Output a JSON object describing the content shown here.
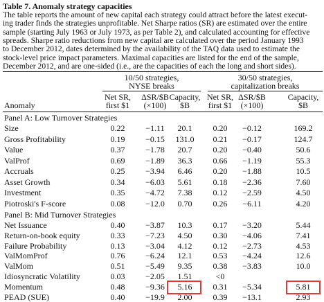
{
  "header": {
    "title": "Table 7. Anomaly strategy capacities",
    "caption_lines": [
      "The table reports the amount of new capital each strategy could attract before the latest execut-",
      "ing trader finds the strategies unprofitable. Net Sharpe ratios (SR) are estimated over the entire",
      "sample (starting July 1963 or July 1973, as per Table 2), and calculated accounting for effective",
      "spreads. Sharpe ratio reductions from new capital are calculated over the period January 1993",
      "to December 2012, dates determined by the availability of the TAQ data used to estimate the",
      "stock-level price impact parameters. Maximal capacities are listed for the end of the sample,",
      "December 2012, and are one-sided (i.e., are the capacities of each the long and short sides)."
    ]
  },
  "table": {
    "groups": [
      [
        "10/50 strategies,",
        "NYSE breaks"
      ],
      [
        "30/50 strategies,",
        "capitalization breaks"
      ]
    ],
    "columns": [
      [
        "Anomaly"
      ],
      [
        "Net SR,",
        "first $1"
      ],
      [
        "ΔSR/$B",
        "(×100)"
      ],
      [
        "Capacity,",
        "$B"
      ],
      [
        "Net SR,",
        "first $1"
      ],
      [
        "ΔSR/$B",
        "(×100)"
      ],
      [
        "Capacity,",
        "$B"
      ]
    ],
    "panels": [
      {
        "title": "Panel A: Low Turnover Strategies",
        "rows": [
          [
            "Size",
            "0.22",
            "−1.11",
            "20.1",
            "0.20",
            "−0.12",
            "169.2"
          ],
          [
            "Gross Profitability",
            "0.19",
            "−0.15",
            "131.0",
            "0.21",
            "−0.17",
            "124.7"
          ],
          [
            "Value",
            "0.37",
            "−1.78",
            "20.7",
            "0.20",
            "−0.40",
            "50.6"
          ],
          [
            "ValProf",
            "0.69",
            "−1.89",
            "36.3",
            "0.66",
            "−1.19",
            "55.3"
          ],
          [
            "Accruals",
            "0.25",
            "−3.94",
            "6.46",
            "0.20",
            "−1.88",
            "10.5"
          ],
          [
            "Asset Growth",
            "0.34",
            "−6.03",
            "5.61",
            "0.18",
            "−2.36",
            "7.60"
          ],
          [
            "Investment",
            "0.35",
            "−4.72",
            "7.38",
            "0.12",
            "−2.59",
            "4.50"
          ],
          [
            "Piotroski's F-score",
            "0.08",
            "−12.0",
            "0.70",
            "0.26",
            "−6.11",
            "4.20"
          ]
        ]
      },
      {
        "title": "Panel B: Mid Turnover Strategies",
        "rows": [
          [
            "Net Issuance",
            "0.40",
            "−3.87",
            "10.3",
            "0.17",
            "−3.20",
            "5.44"
          ],
          [
            "Return-on-book equity",
            "0.33",
            "−7.23",
            "4.50",
            "0.30",
            "−4.06",
            "7.41"
          ],
          [
            "Failure Probability",
            "0.13",
            "−3.04",
            "4.12",
            "0.12",
            "−2.73",
            "4.53"
          ],
          [
            "ValMomProf",
            "0.76",
            "−6.24",
            "12.1",
            "0.53",
            "−4.24",
            "12.6"
          ],
          [
            "ValMom",
            "0.51",
            "−5.49",
            "9.35",
            "0.38",
            "−3.83",
            "10.0"
          ],
          [
            "Idiosyncratic Volatility",
            "0.03",
            "−2.05",
            "1.51",
            "<0"
          ],
          [
            "Momentum",
            "0.48",
            "−9.36",
            "5.16",
            "0.31",
            "−5.34",
            "5.81"
          ],
          [
            "PEAD (SUE)",
            "0.40",
            "−19.9",
            "2.00",
            "0.39",
            "−13.1",
            "2.93"
          ]
        ]
      }
    ]
  }
}
